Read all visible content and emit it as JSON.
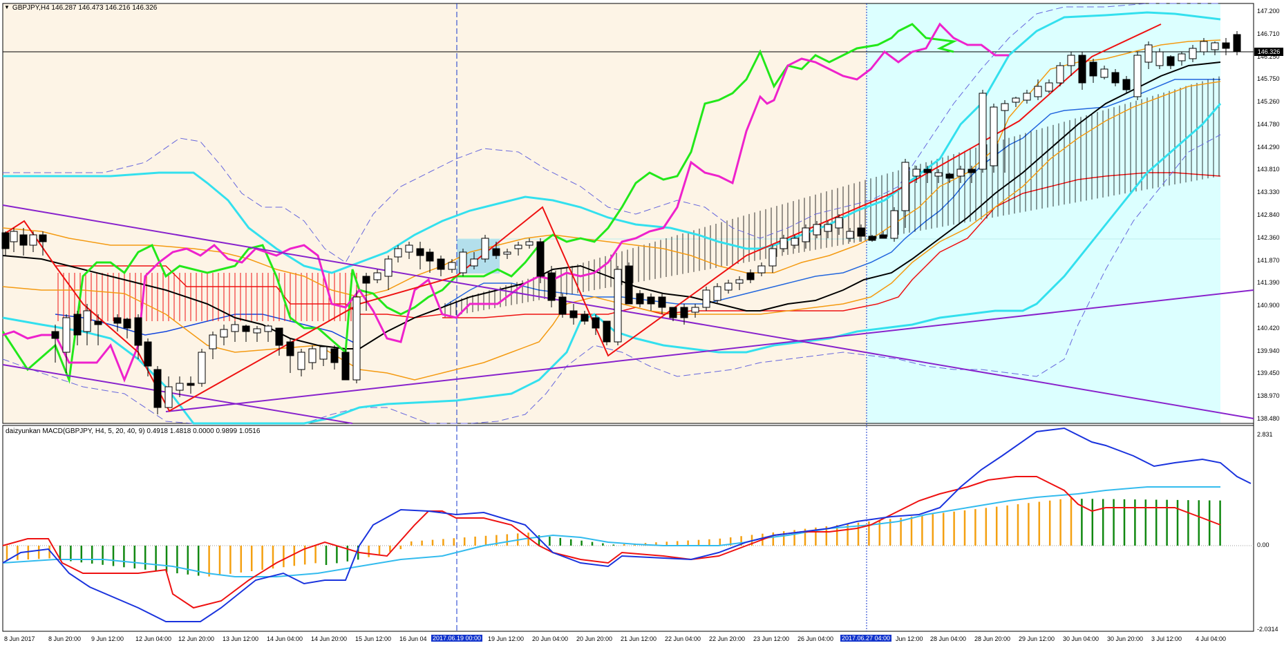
{
  "header": {
    "symbol_line": "GBPJPY,H4  146.287 146.473 146.216 146.326",
    "collapse_glyph": "▼"
  },
  "indicator_header": "daizyunkan MACD(GBPJPY, H4, 5, 20, 40, 9) 0.4918 1.4818 0.0000 0.9899 1.0516",
  "price_axis": {
    "ticks": [
      "147.200",
      "146.710",
      "146.250",
      "145.750",
      "145.260",
      "144.780",
      "144.290",
      "143.810",
      "143.330",
      "142.840",
      "142.360",
      "141.870",
      "141.390",
      "140.900",
      "140.420",
      "139.940",
      "139.450",
      "138.970",
      "138.480"
    ],
    "current_price": "146.326"
  },
  "macd_axis": {
    "ticks": [
      "2.831",
      "0.00",
      "-2.0314"
    ]
  },
  "time_axis": {
    "labels": [
      "8 Jun 2017",
      "8 Jun 20:00",
      "9 Jun 12:00",
      "12 Jun 04:00",
      "12 Jun 20:00",
      "13 Jun 12:00",
      "14 Jun 04:00",
      "14 Jun 20:00",
      "15 Jun 12:00",
      "16 Jun 04",
      "19 Jun 12:00",
      "20 Jun 04:00",
      "20 Jun 20:00",
      "21 Jun 12:00",
      "22 Jun 04:00",
      "22 Jun 20:00",
      "23 Jun 12:00",
      "26 Jun 04:00",
      "Jun 12:00",
      "28 Jun 04:00",
      "28 Jun 20:00",
      "29 Jun 12:00",
      "30 Jun 04:00",
      "30 Jun 20:00",
      "3 Jul 12:00",
      "4 Jul 04:00"
    ],
    "highlight_labels": [
      "2017.06.19 00:00",
      "2017.06.27 04:00"
    ]
  },
  "colors": {
    "bg_left": "#fdf4e6",
    "bg_right": "#dcffff",
    "cyan": "#33e0ee",
    "green": "#22e81a",
    "magenta": "#ee22cc",
    "red": "#ee1111",
    "purple": "#8822cc",
    "orange": "#f49a11",
    "blue": "#1144dd",
    "macd_blue": "#1a33dd",
    "macd_red": "#ee1111",
    "macd_signal": "#33bbee",
    "hist_green": "#118811",
    "hist_orange": "#f4a011",
    "label_bg": "#1133cc"
  }
}
